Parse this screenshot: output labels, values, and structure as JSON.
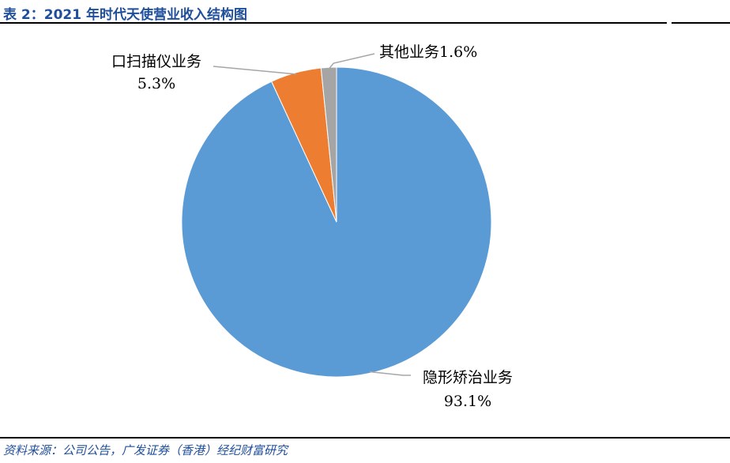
{
  "header": {
    "title": "表 2：2021 年时代天使营业收入结构图"
  },
  "footer": {
    "source": "资料来源：公司公告，广发证券（香港）经纪财富研究"
  },
  "chart_data": {
    "type": "pie",
    "title": "",
    "slices": [
      {
        "name": "隐形矫治业务",
        "value": 93.1,
        "value_label": "93.1%",
        "color": "#5b9bd5"
      },
      {
        "name": "口扫描仪业务",
        "value": 5.3,
        "value_label": "5.3%",
        "color": "#ed7d31"
      },
      {
        "name": "其他业务",
        "value": 1.6,
        "value_label": "1.6%",
        "color": "#a5a5a5"
      }
    ],
    "start": "12 o'clock",
    "direction": "clockwise",
    "legend": "none",
    "labels": "outside with leader lines"
  }
}
